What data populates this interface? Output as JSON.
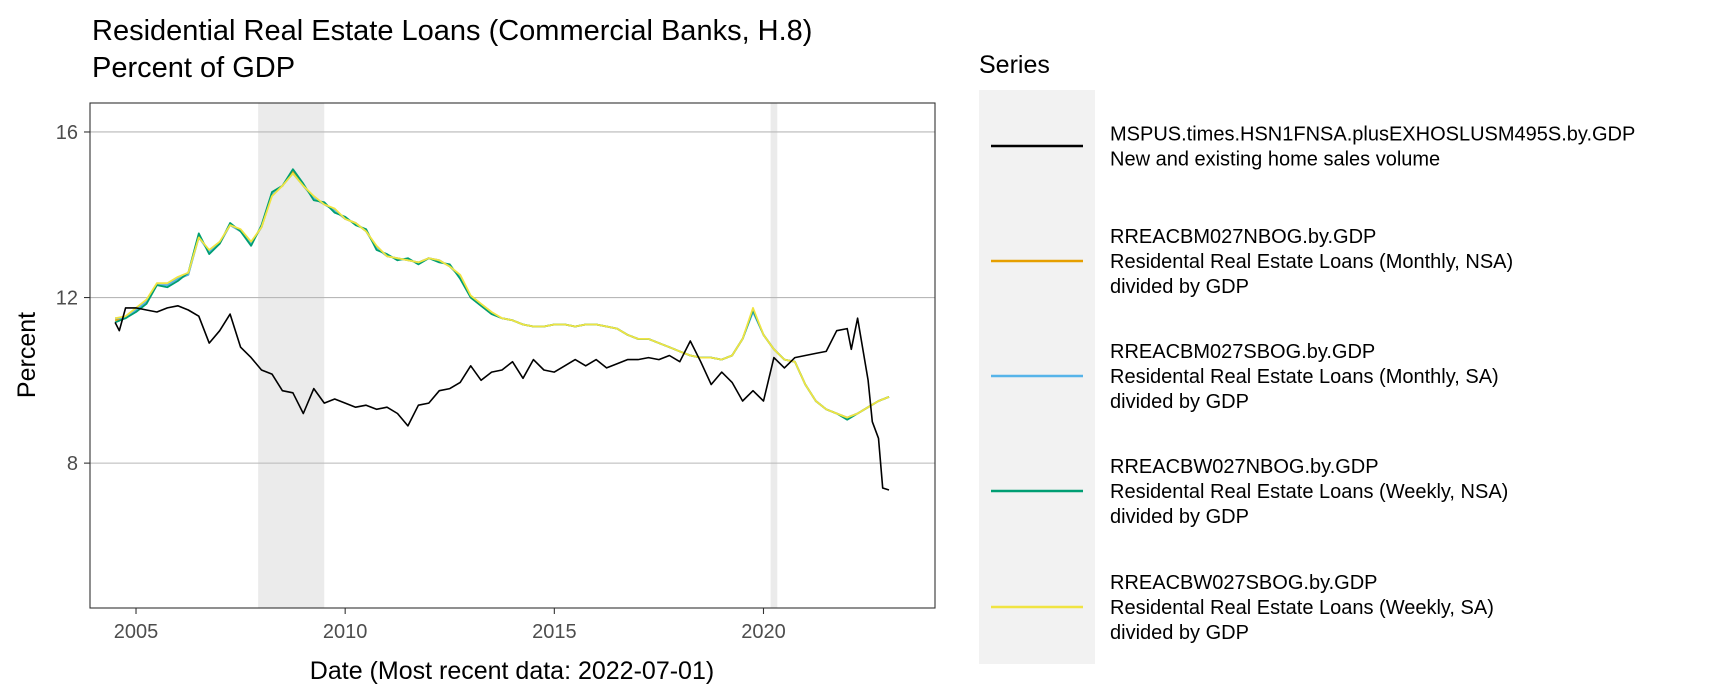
{
  "chart_data": {
    "type": "line",
    "title": "Residential Real Estate Loans (Commercial Banks, H.8)",
    "subtitle": "Percent of GDP",
    "xlabel": "Date (Most recent data: 2022-07-01)",
    "ylabel": "Percent",
    "xlim": [
      2003.9,
      2024.1
    ],
    "ylim": [
      4.5,
      16.7
    ],
    "x_ticks": [
      2005,
      2010,
      2015,
      2020
    ],
    "y_ticks": [
      8,
      12,
      16
    ],
    "grid": "horizontal major gridlines",
    "legend_position": "right",
    "legend_title": "Series",
    "recessions": [
      {
        "start": 2007.92,
        "end": 2009.5
      },
      {
        "start": 2020.17,
        "end": 2020.33
      }
    ],
    "series": [
      {
        "id": "MSPUS.times.HSN1FNSA.plusEXHOSLUSM495S.by.GDP",
        "name": [
          "MSPUS.times.HSN1FNSA.plusEXHOSLUSM495S.by.GDP",
          "New and existing home sales volume"
        ],
        "color": "#000000",
        "x": [
          2004.5,
          2004.6,
          2004.75,
          2005.0,
          2005.25,
          2005.5,
          2005.75,
          2006.0,
          2006.25,
          2006.5,
          2006.75,
          2007.0,
          2007.25,
          2007.5,
          2007.75,
          2008.0,
          2008.25,
          2008.5,
          2008.75,
          2009.0,
          2009.25,
          2009.5,
          2009.75,
          2010.0,
          2010.25,
          2010.5,
          2010.75,
          2011.0,
          2011.25,
          2011.5,
          2011.75,
          2012.0,
          2012.25,
          2012.5,
          2012.75,
          2013.0,
          2013.25,
          2013.5,
          2013.75,
          2014.0,
          2014.25,
          2014.5,
          2014.75,
          2015.0,
          2015.25,
          2015.5,
          2015.75,
          2016.0,
          2016.25,
          2016.5,
          2016.75,
          2017.0,
          2017.25,
          2017.5,
          2017.75,
          2018.0,
          2018.25,
          2018.5,
          2018.75,
          2019.0,
          2019.25,
          2019.5,
          2019.75,
          2020.0,
          2020.25,
          2020.5,
          2020.75,
          2021.0,
          2021.25,
          2021.5,
          2021.75,
          2022.0,
          2022.1,
          2022.25,
          2022.5,
          2022.6,
          2022.75,
          2022.85,
          2023.0
        ],
        "y": [
          11.4,
          11.2,
          11.75,
          11.75,
          11.7,
          11.65,
          11.75,
          11.8,
          11.7,
          11.55,
          10.9,
          11.2,
          11.6,
          10.8,
          10.55,
          10.25,
          10.15,
          9.75,
          9.7,
          9.2,
          9.8,
          9.45,
          9.55,
          9.45,
          9.35,
          9.4,
          9.3,
          9.35,
          9.2,
          8.9,
          9.4,
          9.45,
          9.75,
          9.8,
          9.95,
          10.35,
          10.0,
          10.2,
          10.25,
          10.45,
          10.05,
          10.5,
          10.25,
          10.2,
          10.35,
          10.5,
          10.35,
          10.5,
          10.3,
          10.4,
          10.5,
          10.5,
          10.55,
          10.5,
          10.6,
          10.45,
          10.95,
          10.45,
          9.9,
          10.2,
          9.95,
          9.5,
          9.75,
          9.5,
          10.55,
          10.3,
          10.55,
          10.6,
          10.65,
          10.7,
          11.2,
          11.25,
          10.75,
          11.5,
          10.0,
          9.0,
          8.6,
          7.4,
          7.35
        ]
      },
      {
        "id": "RREACBM027NBOG.by.GDP",
        "name": [
          "RREACBM027NBOG.by.GDP",
          "Residental Real Estate Loans (Monthly, NSA)",
          "divided by GDP"
        ],
        "color": "#E69F00",
        "x": [
          2004.5,
          2004.75,
          2005.0,
          2005.25,
          2005.5,
          2005.75,
          2006.0,
          2006.25,
          2006.5,
          2006.75,
          2007.0,
          2007.25,
          2007.5,
          2007.75,
          2008.0,
          2008.25,
          2008.5,
          2008.75,
          2009.0,
          2009.25,
          2009.5,
          2009.75,
          2010.0,
          2010.25,
          2010.5,
          2010.75,
          2011.0,
          2011.25,
          2011.5,
          2011.75,
          2012.0,
          2012.25,
          2012.5,
          2012.75,
          2013.0,
          2013.25,
          2013.5,
          2013.75,
          2014.0,
          2014.25,
          2014.5,
          2014.75,
          2015.0,
          2015.25,
          2015.5,
          2015.75,
          2016.0,
          2016.25,
          2016.5,
          2016.75,
          2017.0,
          2017.25,
          2017.5,
          2017.75,
          2018.0,
          2018.25,
          2018.5,
          2018.75,
          2019.0,
          2019.25,
          2019.5,
          2019.75,
          2020.0,
          2020.25,
          2020.5,
          2020.75,
          2021.0,
          2021.25,
          2021.5,
          2021.75,
          2022.0,
          2022.25,
          2022.5,
          2022.75,
          2023.0
        ],
        "y": [
          11.45,
          11.5,
          11.7,
          11.9,
          12.3,
          12.3,
          12.45,
          12.55,
          13.5,
          13.1,
          13.3,
          13.75,
          13.6,
          13.3,
          13.7,
          14.5,
          14.7,
          15.05,
          14.7,
          14.4,
          14.25,
          14.1,
          13.9,
          13.8,
          13.6,
          13.2,
          13.0,
          12.95,
          12.9,
          12.85,
          12.95,
          12.9,
          12.75,
          12.5,
          12.0,
          11.8,
          11.6,
          11.5,
          11.45,
          11.35,
          11.3,
          11.3,
          11.35,
          11.35,
          11.3,
          11.35,
          11.35,
          11.3,
          11.25,
          11.1,
          11.0,
          11.0,
          10.9,
          10.8,
          10.7,
          10.6,
          10.55,
          10.55,
          10.5,
          10.6,
          11.0,
          11.7,
          11.1,
          10.75,
          10.5,
          10.45,
          9.9,
          9.5,
          9.3,
          9.2,
          9.1,
          9.2,
          9.35,
          9.5,
          9.6
        ]
      },
      {
        "id": "RREACBM027SBOG.by.GDP",
        "name": [
          "RREACBM027SBOG.by.GDP",
          "Residental Real Estate Loans (Monthly, SA)",
          "divided by GDP"
        ],
        "color": "#56B4E9",
        "x": [
          2004.5,
          2004.75,
          2005.0,
          2005.25,
          2005.5,
          2005.75,
          2006.0,
          2006.25,
          2006.5,
          2006.75,
          2007.0,
          2007.25,
          2007.5,
          2007.75,
          2008.0,
          2008.25,
          2008.5,
          2008.75,
          2009.0,
          2009.25,
          2009.5,
          2009.75,
          2010.0,
          2010.25,
          2010.5,
          2010.75,
          2011.0,
          2011.25,
          2011.5,
          2011.75,
          2012.0,
          2012.25,
          2012.5,
          2012.75,
          2013.0,
          2013.25,
          2013.5,
          2013.75,
          2014.0,
          2014.25,
          2014.5,
          2014.75,
          2015.0,
          2015.25,
          2015.5,
          2015.75,
          2016.0,
          2016.25,
          2016.5,
          2016.75,
          2017.0,
          2017.25,
          2017.5,
          2017.75,
          2018.0,
          2018.25,
          2018.5,
          2018.75,
          2019.0,
          2019.25,
          2019.5,
          2019.75,
          2020.0,
          2020.25,
          2020.5,
          2020.75,
          2021.0,
          2021.25,
          2021.5,
          2021.75,
          2022.0,
          2022.25,
          2022.5,
          2022.75,
          2023.0
        ],
        "y": [
          11.5,
          11.5,
          11.7,
          11.9,
          12.3,
          12.3,
          12.45,
          12.55,
          13.45,
          13.1,
          13.3,
          13.75,
          13.6,
          13.3,
          13.7,
          14.5,
          14.7,
          15.0,
          14.7,
          14.4,
          14.25,
          14.1,
          13.9,
          13.8,
          13.6,
          13.2,
          13.0,
          12.95,
          12.9,
          12.85,
          12.95,
          12.9,
          12.75,
          12.5,
          12.0,
          11.8,
          11.6,
          11.5,
          11.45,
          11.35,
          11.3,
          11.3,
          11.35,
          11.35,
          11.3,
          11.35,
          11.35,
          11.3,
          11.25,
          11.1,
          11.0,
          11.0,
          10.9,
          10.8,
          10.7,
          10.6,
          10.55,
          10.55,
          10.5,
          10.6,
          11.0,
          11.65,
          11.1,
          10.75,
          10.5,
          10.45,
          9.9,
          9.5,
          9.3,
          9.2,
          9.1,
          9.2,
          9.35,
          9.5,
          9.6
        ]
      },
      {
        "id": "RREACBW027NBOG.by.GDP",
        "name": [
          "RREACBW027NBOG.by.GDP",
          "Residental Real Estate Loans (Weekly, NSA)",
          "divided by GDP"
        ],
        "color": "#009E73",
        "x": [
          2004.5,
          2004.75,
          2005.0,
          2005.25,
          2005.5,
          2005.75,
          2006.0,
          2006.25,
          2006.5,
          2006.75,
          2007.0,
          2007.25,
          2007.5,
          2007.75,
          2008.0,
          2008.25,
          2008.5,
          2008.75,
          2009.0,
          2009.25,
          2009.5,
          2009.75,
          2010.0,
          2010.25,
          2010.5,
          2010.75,
          2011.0,
          2011.25,
          2011.5,
          2011.75,
          2012.0,
          2012.25,
          2012.5,
          2012.75,
          2013.0,
          2013.25,
          2013.5,
          2013.75,
          2014.0,
          2014.25,
          2014.5,
          2014.75,
          2015.0,
          2015.25,
          2015.5,
          2015.75,
          2016.0,
          2016.25,
          2016.5,
          2016.75,
          2017.0,
          2017.25,
          2017.5,
          2017.75,
          2018.0,
          2018.25,
          2018.5,
          2018.75,
          2019.0,
          2019.25,
          2019.5,
          2019.75,
          2020.0,
          2020.25,
          2020.5,
          2020.75,
          2021.0,
          2021.25,
          2021.5,
          2021.75,
          2022.0,
          2022.25,
          2022.5,
          2022.75,
          2023.0
        ],
        "y": [
          11.4,
          11.5,
          11.65,
          11.85,
          12.3,
          12.25,
          12.4,
          12.6,
          13.55,
          13.05,
          13.3,
          13.8,
          13.6,
          13.25,
          13.75,
          14.55,
          14.7,
          15.1,
          14.75,
          14.35,
          14.3,
          14.05,
          13.95,
          13.75,
          13.65,
          13.15,
          13.05,
          12.9,
          12.95,
          12.8,
          12.95,
          12.85,
          12.8,
          12.45,
          12.0,
          11.8,
          11.6,
          11.5,
          11.45,
          11.35,
          11.3,
          11.3,
          11.35,
          11.35,
          11.3,
          11.35,
          11.35,
          11.3,
          11.25,
          11.1,
          11.0,
          11.0,
          10.9,
          10.8,
          10.7,
          10.6,
          10.55,
          10.55,
          10.5,
          10.6,
          11.0,
          11.7,
          11.1,
          10.75,
          10.5,
          10.45,
          9.9,
          9.5,
          9.3,
          9.2,
          9.05,
          9.2,
          9.35,
          9.5,
          9.6
        ]
      },
      {
        "id": "RREACBW027SBOG.by.GDP",
        "name": [
          "RREACBW027SBOG.by.GDP",
          "Residental Real Estate Loans (Weekly, SA)",
          "divided by GDP"
        ],
        "color": "#F0E442",
        "x": [
          2004.5,
          2004.75,
          2005.0,
          2005.25,
          2005.5,
          2005.75,
          2006.0,
          2006.25,
          2006.5,
          2006.75,
          2007.0,
          2007.25,
          2007.5,
          2007.75,
          2008.0,
          2008.25,
          2008.5,
          2008.75,
          2009.0,
          2009.25,
          2009.5,
          2009.75,
          2010.0,
          2010.25,
          2010.5,
          2010.75,
          2011.0,
          2011.25,
          2011.5,
          2011.75,
          2012.0,
          2012.25,
          2012.5,
          2012.75,
          2013.0,
          2013.25,
          2013.5,
          2013.75,
          2014.0,
          2014.25,
          2014.5,
          2014.75,
          2015.0,
          2015.25,
          2015.5,
          2015.75,
          2016.0,
          2016.25,
          2016.5,
          2016.75,
          2017.0,
          2017.25,
          2017.5,
          2017.75,
          2018.0,
          2018.25,
          2018.5,
          2018.75,
          2019.0,
          2019.25,
          2019.5,
          2019.75,
          2020.0,
          2020.25,
          2020.5,
          2020.75,
          2021.0,
          2021.25,
          2021.5,
          2021.75,
          2022.0,
          2022.25,
          2022.5,
          2022.75,
          2023.0
        ],
        "y": [
          11.5,
          11.55,
          11.75,
          11.95,
          12.35,
          12.35,
          12.5,
          12.6,
          13.45,
          13.15,
          13.35,
          13.75,
          13.65,
          13.35,
          13.7,
          14.45,
          14.7,
          15.0,
          14.7,
          14.45,
          14.25,
          14.15,
          13.9,
          13.8,
          13.6,
          13.25,
          13.0,
          12.95,
          12.9,
          12.85,
          12.95,
          12.9,
          12.75,
          12.55,
          12.05,
          11.85,
          11.65,
          11.5,
          11.45,
          11.35,
          11.3,
          11.3,
          11.35,
          11.35,
          11.3,
          11.35,
          11.35,
          11.3,
          11.25,
          11.1,
          11.0,
          11.0,
          10.9,
          10.8,
          10.7,
          10.6,
          10.55,
          10.55,
          10.5,
          10.6,
          11.0,
          11.75,
          11.1,
          10.75,
          10.5,
          10.45,
          9.9,
          9.5,
          9.3,
          9.2,
          9.1,
          9.2,
          9.35,
          9.5,
          9.6
        ]
      }
    ]
  }
}
